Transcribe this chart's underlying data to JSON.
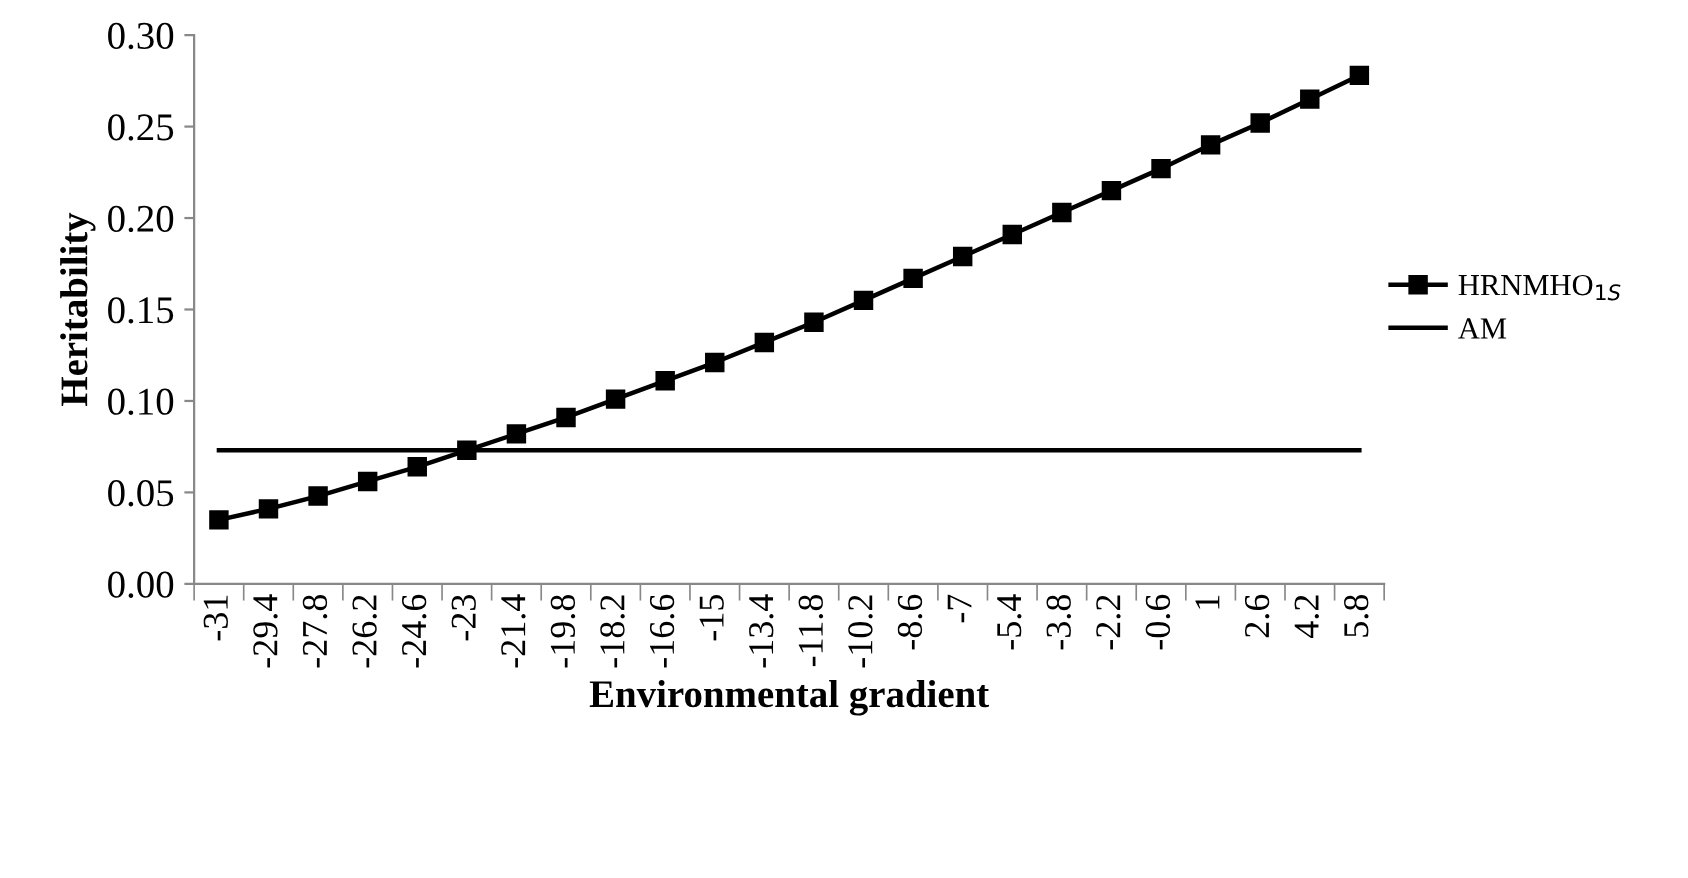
{
  "chart_data": {
    "type": "line",
    "xlabel": "Environmental gradient",
    "ylabel": "Heritability",
    "categories": [
      "-31",
      "-29.4",
      "-27.8",
      "-26.2",
      "-24.6",
      "-23",
      "-21.4",
      "-19.8",
      "-18.2",
      "-16.6",
      "-15",
      "-13.4",
      "-11.8",
      "-10.2",
      "-8.6",
      "-7",
      "-5.4",
      "-3.8",
      "-2.2",
      "-0.6",
      "1",
      "2.6",
      "4.2",
      "5.8"
    ],
    "series": [
      {
        "name": "HRNMHO$_{1S}$",
        "color": "#000000",
        "marker": "square",
        "values": [
          0.035,
          0.041,
          0.048,
          0.056,
          0.064,
          0.073,
          0.082,
          0.091,
          0.101,
          0.111,
          0.121,
          0.132,
          0.143,
          0.155,
          0.167,
          0.179,
          0.191,
          0.203,
          0.215,
          0.227,
          0.24,
          0.252,
          0.265,
          0.278
        ]
      },
      {
        "name": "AM",
        "color": "#000000",
        "marker": "none",
        "values": [
          0.073,
          0.073,
          0.073,
          0.073,
          0.073,
          0.073,
          0.073,
          0.073,
          0.073,
          0.073,
          0.073,
          0.073,
          0.073,
          0.073,
          0.073,
          0.073,
          0.073,
          0.073,
          0.073,
          0.073,
          0.073,
          0.073,
          0.073,
          0.073
        ]
      }
    ],
    "ylim": [
      0,
      0.3
    ],
    "yticks": [
      {
        "value": 0,
        "label": "0.00"
      },
      {
        "value": 0.05,
        "label": "0.05"
      },
      {
        "value": 0.1,
        "label": "0.10"
      },
      {
        "value": 0.15,
        "label": "0.15"
      },
      {
        "value": 0.2,
        "label": "0.20"
      },
      {
        "value": 0.25,
        "label": "0.25"
      },
      {
        "value": 0.3,
        "label": "0.30"
      }
    ],
    "grid": false,
    "legend": "right",
    "line_style": "solid"
  }
}
